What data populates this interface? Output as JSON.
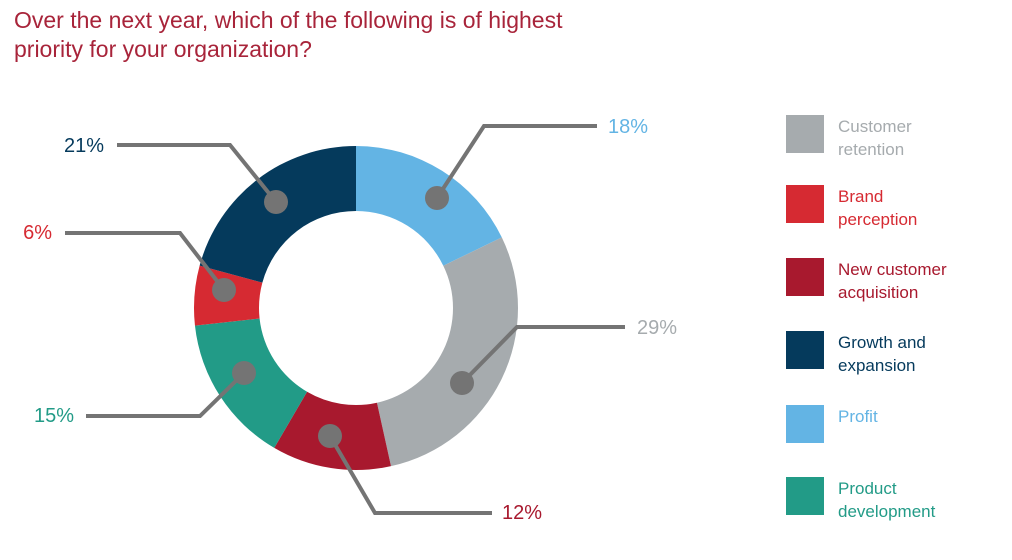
{
  "title": "Over the next year, which of the following is of highest priority for your organization?",
  "chart_data": {
    "type": "pie",
    "donut": true,
    "title": "Over the next year, which of the following is of highest priority for your organization?",
    "unit": "%",
    "start_angle_deg": 0,
    "slices": [
      {
        "name": "Profit",
        "value": 18,
        "label": "18%",
        "color": "#63b4e4"
      },
      {
        "name": "Customer retention",
        "value": 29,
        "label": "29%",
        "color": "#a6abae"
      },
      {
        "name": "New customer acquisition",
        "value": 12,
        "label": "12%",
        "color": "#a8192e"
      },
      {
        "name": "Product development",
        "value": 15,
        "label": "15%",
        "color": "#229b87"
      },
      {
        "name": "Brand perception",
        "value": 6,
        "label": "6%",
        "color": "#d62a32"
      },
      {
        "name": "Growth and expansion",
        "value": 21,
        "label": "21%",
        "color": "#053a5c"
      }
    ],
    "legend_position": "right"
  },
  "legend": [
    {
      "lines": [
        "Customer",
        "retention"
      ],
      "color": "#a6abae",
      "text_color": "#a6abae"
    },
    {
      "lines": [
        "Brand",
        "perception"
      ],
      "color": "#d62a32",
      "text_color": "#d62a32"
    },
    {
      "lines": [
        "New customer",
        "acquisition"
      ],
      "color": "#a8192e",
      "text_color": "#a8192e"
    },
    {
      "lines": [
        "Growth and",
        "expansion"
      ],
      "color": "#053a5c",
      "text_color": "#053a5c"
    },
    {
      "lines": [
        "Profit"
      ],
      "color": "#63b4e4",
      "text_color": "#63b4e4"
    },
    {
      "lines": [
        "Product",
        "development"
      ],
      "color": "#229b87",
      "text_color": "#229b87"
    }
  ]
}
